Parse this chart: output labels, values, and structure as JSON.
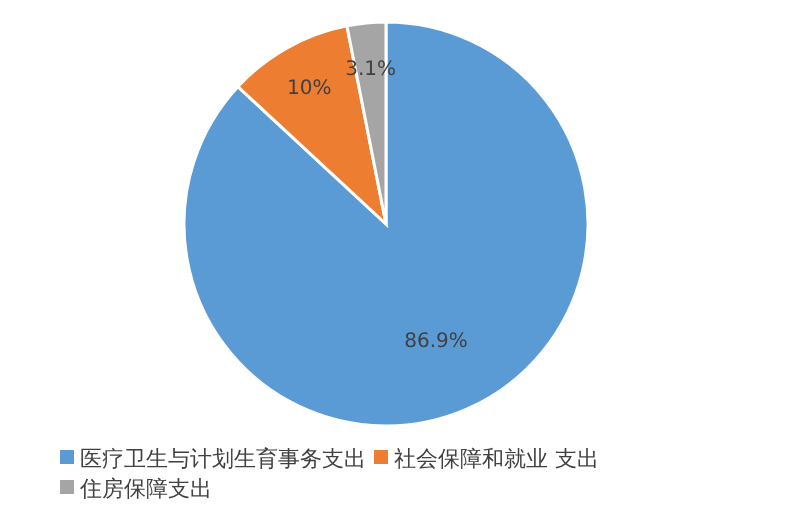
{
  "chart_data": {
    "type": "pie",
    "categories": [
      "医疗卫生与计划生育事务支出",
      "社会保障和就业 支出",
      "住房保障支出"
    ],
    "values": [
      86.9,
      10,
      3.1
    ],
    "colors": [
      "#5b9bd5",
      "#ed7d31",
      "#a5a5a5"
    ],
    "value_labels": [
      "86.9%",
      "10%",
      "3.1%"
    ],
    "legend": "bottom left"
  }
}
